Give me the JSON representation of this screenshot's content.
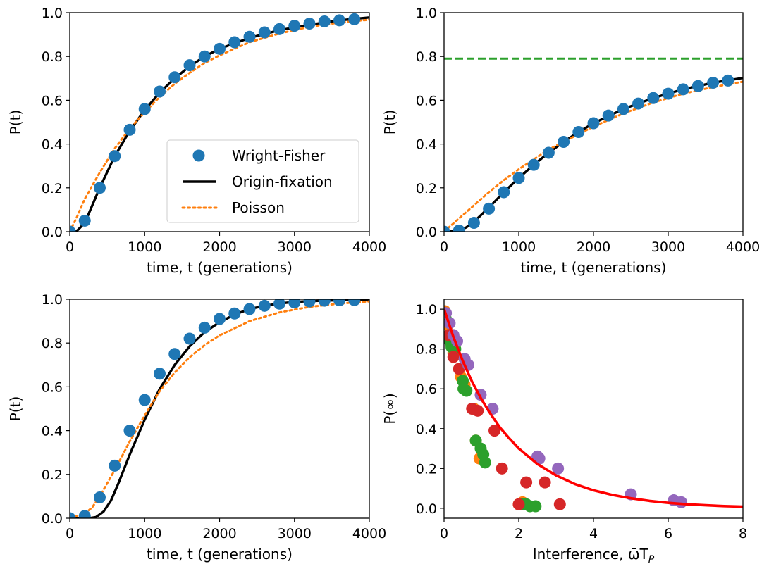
{
  "colors": {
    "wright_fisher": "#1f77b4",
    "origin_fixation": "#000000",
    "poisson": "#ff7f0e",
    "asymptote": "#2ca02c",
    "fit_curve": "#ff0000",
    "scatter_orange": "#ff7f0e",
    "scatter_green": "#2ca02c",
    "scatter_red": "#d62728",
    "scatter_purple": "#9467bd"
  },
  "chart_data": [
    {
      "type": "line",
      "xlabel": "time, t (generations)",
      "ylabel": "P(t)",
      "xlim": [
        0,
        4000
      ],
      "ylim": [
        0,
        1.0
      ],
      "xticks": [
        "0",
        "1000",
        "2000",
        "3000",
        "4000"
      ],
      "yticks": [
        "0.0",
        "0.2",
        "0.4",
        "0.6",
        "0.8",
        "1.0"
      ],
      "legend": {
        "placement": "lower-right",
        "entries": [
          "Wright-Fisher",
          "Origin-fixation",
          "Poisson"
        ]
      },
      "series": [
        {
          "name": "Wright-Fisher",
          "style": "markers",
          "points": [
            [
              0,
              0.0
            ],
            [
              200,
              0.05
            ],
            [
              400,
              0.2
            ],
            [
              600,
              0.345
            ],
            [
              800,
              0.465
            ],
            [
              1000,
              0.56
            ],
            [
              1200,
              0.64
            ],
            [
              1400,
              0.705
            ],
            [
              1600,
              0.76
            ],
            [
              1800,
              0.8
            ],
            [
              2000,
              0.835
            ],
            [
              2200,
              0.865
            ],
            [
              2400,
              0.89
            ],
            [
              2600,
              0.91
            ],
            [
              2800,
              0.925
            ],
            [
              3000,
              0.94
            ],
            [
              3200,
              0.95
            ],
            [
              3400,
              0.96
            ],
            [
              3600,
              0.965
            ],
            [
              3800,
              0.97
            ]
          ]
        },
        {
          "name": "Origin-fixation",
          "style": "solid",
          "points": [
            [
              0,
              0.0
            ],
            [
              100,
              0.005
            ],
            [
              200,
              0.04
            ],
            [
              300,
              0.12
            ],
            [
              400,
              0.2
            ],
            [
              600,
              0.345
            ],
            [
              800,
              0.46
            ],
            [
              1000,
              0.555
            ],
            [
              1200,
              0.635
            ],
            [
              1400,
              0.7
            ],
            [
              1600,
              0.755
            ],
            [
              1800,
              0.8
            ],
            [
              2000,
              0.835
            ],
            [
              2400,
              0.885
            ],
            [
              2800,
              0.92
            ],
            [
              3200,
              0.945
            ],
            [
              3600,
              0.965
            ],
            [
              4000,
              0.978
            ]
          ]
        },
        {
          "name": "Poisson",
          "style": "dotted",
          "points": [
            [
              0,
              0.0
            ],
            [
              100,
              0.07
            ],
            [
              200,
              0.15
            ],
            [
              400,
              0.27
            ],
            [
              600,
              0.38
            ],
            [
              800,
              0.47
            ],
            [
              1000,
              0.545
            ],
            [
              1200,
              0.615
            ],
            [
              1400,
              0.675
            ],
            [
              1600,
              0.725
            ],
            [
              1800,
              0.77
            ],
            [
              2000,
              0.805
            ],
            [
              2400,
              0.865
            ],
            [
              2800,
              0.905
            ],
            [
              3200,
              0.935
            ],
            [
              3600,
              0.955
            ],
            [
              4000,
              0.968
            ]
          ]
        }
      ]
    },
    {
      "type": "line",
      "xlabel": "time, t (generations)",
      "ylabel": "P(t)",
      "xlim": [
        0,
        4000
      ],
      "ylim": [
        0,
        1.0
      ],
      "xticks": [
        "0",
        "1000",
        "2000",
        "3000",
        "4000"
      ],
      "yticks": [
        "0.0",
        "0.2",
        "0.4",
        "0.6",
        "0.8",
        "1.0"
      ],
      "asymptote": 0.79,
      "series": [
        {
          "style": "markers",
          "points": [
            [
              0,
              0.0
            ],
            [
              200,
              0.005
            ],
            [
              400,
              0.04
            ],
            [
              600,
              0.105
            ],
            [
              800,
              0.18
            ],
            [
              1000,
              0.245
            ],
            [
              1200,
              0.305
            ],
            [
              1400,
              0.36
            ],
            [
              1600,
              0.41
            ],
            [
              1800,
              0.455
            ],
            [
              2000,
              0.495
            ],
            [
              2200,
              0.53
            ],
            [
              2400,
              0.56
            ],
            [
              2600,
              0.585
            ],
            [
              2800,
              0.61
            ],
            [
              3000,
              0.63
            ],
            [
              3200,
              0.65
            ],
            [
              3400,
              0.665
            ],
            [
              3600,
              0.68
            ],
            [
              3800,
              0.69
            ]
          ]
        },
        {
          "style": "solid",
          "points": [
            [
              0,
              0.0
            ],
            [
              200,
              0.005
            ],
            [
              300,
              0.02
            ],
            [
              400,
              0.045
            ],
            [
              600,
              0.11
            ],
            [
              800,
              0.18
            ],
            [
              1000,
              0.245
            ],
            [
              1200,
              0.305
            ],
            [
              1400,
              0.36
            ],
            [
              1600,
              0.41
            ],
            [
              1800,
              0.455
            ],
            [
              2000,
              0.495
            ],
            [
              2400,
              0.56
            ],
            [
              2800,
              0.61
            ],
            [
              3200,
              0.65
            ],
            [
              3600,
              0.68
            ],
            [
              4000,
              0.702
            ]
          ]
        },
        {
          "style": "dotted",
          "points": [
            [
              0,
              0.0
            ],
            [
              200,
              0.06
            ],
            [
              400,
              0.12
            ],
            [
              600,
              0.18
            ],
            [
              800,
              0.235
            ],
            [
              1000,
              0.285
            ],
            [
              1200,
              0.33
            ],
            [
              1400,
              0.375
            ],
            [
              1600,
              0.41
            ],
            [
              2000,
              0.48
            ],
            [
              2400,
              0.54
            ],
            [
              2800,
              0.59
            ],
            [
              3200,
              0.63
            ],
            [
              3600,
              0.66
            ],
            [
              4000,
              0.685
            ]
          ]
        }
      ]
    },
    {
      "type": "line",
      "xlabel": "time, t (generations)",
      "ylabel": "P(t)",
      "xlim": [
        0,
        4000
      ],
      "ylim": [
        0,
        1.0
      ],
      "xticks": [
        "0",
        "1000",
        "2000",
        "3000",
        "4000"
      ],
      "yticks": [
        "0.0",
        "0.2",
        "0.4",
        "0.6",
        "0.8",
        "1.0"
      ],
      "series": [
        {
          "style": "markers",
          "points": [
            [
              0,
              0.0
            ],
            [
              200,
              0.01
            ],
            [
              400,
              0.095
            ],
            [
              600,
              0.24
            ],
            [
              800,
              0.4
            ],
            [
              1000,
              0.54
            ],
            [
              1200,
              0.66
            ],
            [
              1400,
              0.75
            ],
            [
              1600,
              0.82
            ],
            [
              1800,
              0.87
            ],
            [
              2000,
              0.91
            ],
            [
              2200,
              0.935
            ],
            [
              2400,
              0.955
            ],
            [
              2600,
              0.97
            ],
            [
              2800,
              0.98
            ],
            [
              3000,
              0.985
            ],
            [
              3200,
              0.99
            ],
            [
              3400,
              0.993
            ],
            [
              3600,
              0.995
            ],
            [
              3800,
              0.996
            ]
          ]
        },
        {
          "style": "solid",
          "points": [
            [
              0,
              0.0
            ],
            [
              250,
              0.0
            ],
            [
              350,
              0.005
            ],
            [
              450,
              0.03
            ],
            [
              550,
              0.08
            ],
            [
              650,
              0.16
            ],
            [
              800,
              0.29
            ],
            [
              1000,
              0.45
            ],
            [
              1200,
              0.59
            ],
            [
              1400,
              0.7
            ],
            [
              1600,
              0.785
            ],
            [
              1800,
              0.85
            ],
            [
              2000,
              0.895
            ],
            [
              2200,
              0.93
            ],
            [
              2400,
              0.955
            ],
            [
              2600,
              0.97
            ],
            [
              2800,
              0.98
            ],
            [
              3000,
              0.988
            ],
            [
              3400,
              0.994
            ],
            [
              4000,
              0.998
            ]
          ]
        },
        {
          "style": "dotted",
          "points": [
            [
              0,
              0.0
            ],
            [
              200,
              0.02
            ],
            [
              300,
              0.05
            ],
            [
              400,
              0.1
            ],
            [
              600,
              0.22
            ],
            [
              800,
              0.35
            ],
            [
              1000,
              0.47
            ],
            [
              1200,
              0.58
            ],
            [
              1400,
              0.665
            ],
            [
              1600,
              0.735
            ],
            [
              1800,
              0.79
            ],
            [
              2000,
              0.835
            ],
            [
              2400,
              0.9
            ],
            [
              2800,
              0.94
            ],
            [
              3200,
              0.965
            ],
            [
              3600,
              0.98
            ],
            [
              4000,
              0.99
            ]
          ]
        }
      ]
    },
    {
      "type": "scatter",
      "xlabel": "Interference, ω̄T",
      "xlabel_subscript": "P",
      "ylabel": "P(∞)",
      "xlim": [
        0,
        8
      ],
      "ylim": [
        -0.05,
        1.05
      ],
      "xticks": [
        "0",
        "2",
        "4",
        "6",
        "8"
      ],
      "yticks": [
        "0.0",
        "0.2",
        "0.4",
        "0.6",
        "0.8",
        "1.0"
      ],
      "fit_curve": [
        [
          0,
          1.0
        ],
        [
          0.25,
          0.86
        ],
        [
          0.5,
          0.74
        ],
        [
          0.75,
          0.635
        ],
        [
          1.0,
          0.548
        ],
        [
          1.25,
          0.472
        ],
        [
          1.5,
          0.405
        ],
        [
          1.75,
          0.35
        ],
        [
          2.0,
          0.3
        ],
        [
          2.5,
          0.222
        ],
        [
          3.0,
          0.165
        ],
        [
          3.5,
          0.122
        ],
        [
          4.0,
          0.09
        ],
        [
          4.5,
          0.067
        ],
        [
          5.0,
          0.05
        ],
        [
          5.5,
          0.037
        ],
        [
          6.0,
          0.027
        ],
        [
          6.5,
          0.02
        ],
        [
          7.0,
          0.015
        ],
        [
          7.5,
          0.011
        ],
        [
          8.0,
          0.008
        ]
      ],
      "series": [
        {
          "color_key": "scatter_orange",
          "points": [
            [
              0.02,
              0.99
            ],
            [
              0.1,
              0.92
            ],
            [
              0.2,
              0.82
            ],
            [
              0.25,
              0.78
            ],
            [
              0.45,
              0.66
            ],
            [
              0.55,
              0.62
            ],
            [
              0.8,
              0.5
            ],
            [
              0.85,
              0.34
            ],
            [
              0.95,
              0.25
            ],
            [
              2.0,
              0.02
            ],
            [
              2.1,
              0.03
            ]
          ]
        },
        {
          "color_key": "scatter_green",
          "points": [
            [
              0.05,
              0.95
            ],
            [
              0.15,
              0.84
            ],
            [
              0.2,
              0.81
            ],
            [
              0.3,
              0.8
            ],
            [
              0.5,
              0.64
            ],
            [
              0.52,
              0.6
            ],
            [
              0.6,
              0.59
            ],
            [
              0.85,
              0.34
            ],
            [
              0.98,
              0.3
            ],
            [
              1.05,
              0.27
            ],
            [
              1.1,
              0.23
            ],
            [
              2.1,
              0.02
            ],
            [
              2.2,
              0.02
            ],
            [
              2.3,
              0.01
            ],
            [
              2.45,
              0.01
            ]
          ]
        },
        {
          "color_key": "scatter_red",
          "points": [
            [
              0.02,
              0.98
            ],
            [
              0.12,
              0.87
            ],
            [
              0.25,
              0.76
            ],
            [
              0.4,
              0.7
            ],
            [
              0.75,
              0.5
            ],
            [
              0.9,
              0.49
            ],
            [
              1.35,
              0.39
            ],
            [
              1.55,
              0.2
            ],
            [
              2.0,
              0.02
            ],
            [
              2.2,
              0.13
            ],
            [
              2.7,
              0.13
            ],
            [
              3.1,
              0.02
            ]
          ]
        },
        {
          "color_key": "scatter_purple",
          "points": [
            [
              0.05,
              0.98
            ],
            [
              0.15,
              0.93
            ],
            [
              0.25,
              0.87
            ],
            [
              0.35,
              0.84
            ],
            [
              0.55,
              0.75
            ],
            [
              0.65,
              0.72
            ],
            [
              0.98,
              0.57
            ],
            [
              1.3,
              0.5
            ],
            [
              2.5,
              0.26
            ],
            [
              2.55,
              0.25
            ],
            [
              3.05,
              0.2
            ],
            [
              5.0,
              0.07
            ],
            [
              6.15,
              0.04
            ],
            [
              6.35,
              0.03
            ]
          ]
        }
      ]
    }
  ]
}
